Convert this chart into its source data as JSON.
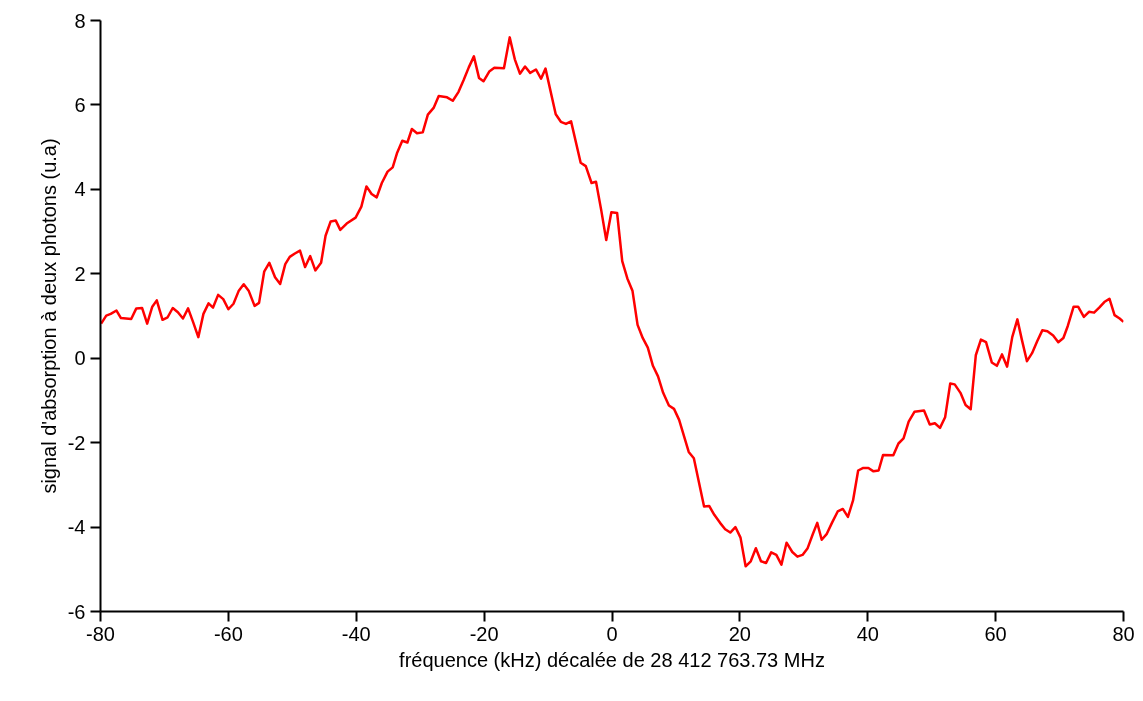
{
  "chart_data": {
    "type": "line",
    "xlabel": "fréquence (kHz) décalée de 28 412 763.73 MHz",
    "ylabel": "signal d'absorption à deux photons (u.a)",
    "xlim": [
      -80,
      80
    ],
    "ylim": [
      -6,
      8
    ],
    "xticks": [
      -80,
      -60,
      -40,
      -20,
      0,
      20,
      40,
      60,
      80
    ],
    "yticks": [
      -6,
      -4,
      -2,
      0,
      2,
      4,
      6,
      8
    ],
    "grid": false,
    "marker": "none",
    "line_style": "solid",
    "series": [
      {
        "color": "#ff0000",
        "x": [
          -79.9,
          -79.1,
          -78.4,
          -77.5,
          -76.8,
          -75.2,
          -74.4,
          -73.5,
          -72.7,
          -71.9,
          -71.2,
          -70.3,
          -69.5,
          -68.7,
          -67.9,
          -67.1,
          -66.3,
          -65.5,
          -64.7,
          -63.9,
          -63.1,
          -62.4,
          -61.6,
          -60.8,
          -60.0,
          -59.2,
          -58.4,
          -57.6,
          -56.8,
          -55.9,
          -55.2,
          -54.4,
          -53.6,
          -52.7,
          -51.9,
          -51.1,
          -50.4,
          -49.6,
          -48.8,
          -48.0,
          -47.2,
          -46.4,
          -45.5,
          -44.8,
          -44.0,
          -43.2,
          -42.5,
          -41.5,
          -40.1,
          -39.2,
          -38.4,
          -37.6,
          -36.8,
          -36.0,
          -35.1,
          -34.3,
          -33.6,
          -32.8,
          -32.0,
          -31.3,
          -30.5,
          -29.6,
          -28.8,
          -27.9,
          -27.1,
          -25.8,
          -24.9,
          -24.0,
          -23.2,
          -22.4,
          -21.6,
          -20.8,
          -20.1,
          -19.2,
          -18.4,
          -16.9,
          -16.0,
          -15.2,
          -14.4,
          -13.6,
          -12.8,
          -11.9,
          -11.1,
          -10.4,
          -8.8,
          -8.0,
          -7.2,
          -6.4,
          -4.9,
          -4.1,
          -3.2,
          -2.5,
          -1.7,
          -0.9,
          -0.1,
          0.8,
          1.6,
          2.4,
          3.2,
          4.0,
          4.8,
          5.6,
          6.4,
          7.2,
          8.0,
          8.9,
          9.7,
          10.5,
          12.0,
          12.8,
          14.4,
          15.2,
          16.0,
          16.9,
          17.7,
          18.5,
          19.3,
          20.1,
          20.9,
          21.7,
          22.5,
          23.3,
          24.1,
          24.9,
          25.7,
          26.5,
          27.3,
          28.2,
          29.0,
          29.8,
          30.6,
          31.4,
          32.1,
          32.8,
          33.6,
          34.4,
          35.3,
          36.1,
          36.9,
          37.7,
          38.5,
          39.3,
          40.1,
          40.9,
          41.7,
          42.4,
          44.0,
          44.8,
          45.6,
          46.4,
          47.3,
          48.8,
          49.7,
          50.5,
          51.3,
          52.1,
          52.9,
          53.6,
          54.5,
          55.3,
          56.1,
          56.9,
          57.7,
          58.5,
          59.4,
          60.2,
          61.0,
          61.8,
          62.6,
          63.4,
          64.1,
          64.9,
          65.7,
          66.5,
          67.3,
          68.1,
          69.0,
          69.8,
          70.6,
          71.3,
          72.2,
          72.9,
          73.8,
          74.6,
          75.4,
          76.2,
          77.0,
          77.8,
          78.6,
          79.4,
          80.0
        ],
        "values": [
          0.82,
          1.01,
          1.05,
          1.13,
          0.95,
          0.93,
          1.18,
          1.19,
          0.82,
          1.22,
          1.37,
          0.91,
          0.97,
          1.19,
          1.09,
          0.94,
          1.18,
          0.85,
          0.5,
          1.05,
          1.3,
          1.2,
          1.5,
          1.4,
          1.16,
          1.29,
          1.59,
          1.75,
          1.59,
          1.24,
          1.31,
          2.05,
          2.26,
          1.92,
          1.76,
          2.23,
          2.4,
          2.48,
          2.55,
          2.16,
          2.42,
          2.08,
          2.26,
          2.9,
          3.24,
          3.26,
          3.04,
          3.19,
          3.33,
          3.59,
          4.07,
          3.89,
          3.81,
          4.15,
          4.42,
          4.52,
          4.87,
          5.15,
          5.11,
          5.43,
          5.33,
          5.35,
          5.77,
          5.93,
          6.21,
          6.18,
          6.1,
          6.31,
          6.59,
          6.89,
          7.15,
          6.64,
          6.56,
          6.79,
          6.88,
          6.87,
          7.6,
          7.08,
          6.74,
          6.91,
          6.76,
          6.84,
          6.62,
          6.86,
          5.78,
          5.6,
          5.55,
          5.61,
          4.63,
          4.55,
          4.15,
          4.18,
          3.52,
          2.8,
          3.46,
          3.44,
          2.3,
          1.89,
          1.6,
          0.79,
          0.48,
          0.25,
          -0.18,
          -0.43,
          -0.82,
          -1.12,
          -1.2,
          -1.46,
          -2.22,
          -2.37,
          -3.51,
          -3.5,
          -3.71,
          -3.9,
          -4.05,
          -4.13,
          -4.0,
          -4.25,
          -4.93,
          -4.81,
          -4.5,
          -4.81,
          -4.85,
          -4.6,
          -4.66,
          -4.89,
          -4.37,
          -4.59,
          -4.7,
          -4.66,
          -4.5,
          -4.17,
          -3.9,
          -4.3,
          -4.16,
          -3.9,
          -3.63,
          -3.57,
          -3.76,
          -3.37,
          -2.66,
          -2.6,
          -2.6,
          -2.68,
          -2.66,
          -2.29,
          -2.3,
          -2.02,
          -1.9,
          -1.5,
          -1.27,
          -1.24,
          -1.57,
          -1.54,
          -1.65,
          -1.4,
          -0.6,
          -0.62,
          -0.82,
          -1.11,
          -1.21,
          0.07,
          0.44,
          0.38,
          -0.1,
          -0.18,
          0.09,
          -0.2,
          0.5,
          0.92,
          0.44,
          -0.07,
          0.12,
          0.4,
          0.66,
          0.64,
          0.54,
          0.38,
          0.48,
          0.77,
          1.22,
          1.22,
          0.98,
          1.1,
          1.08,
          1.2,
          1.33,
          1.41,
          1.02,
          0.94,
          0.86
        ]
      }
    ]
  }
}
